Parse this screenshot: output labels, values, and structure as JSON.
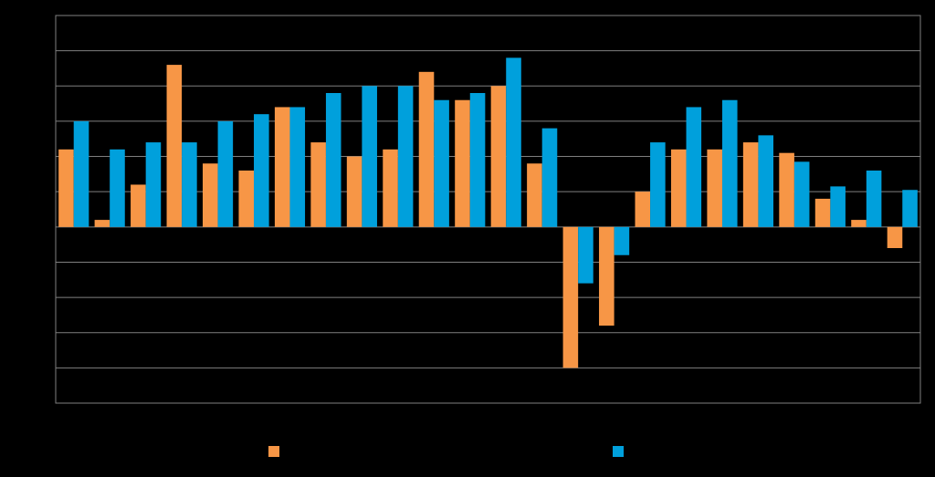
{
  "chart_data": {
    "type": "bar",
    "categories": [
      null,
      null,
      null,
      null,
      null,
      null,
      null,
      null,
      null,
      null,
      null,
      null,
      null,
      null,
      null,
      null,
      null,
      null,
      null,
      null,
      null,
      null,
      null,
      null
    ],
    "series": [
      {
        "color": "#f79646",
        "values": [
          2.2,
          0.2,
          1.2,
          4.6,
          1.8,
          1.6,
          3.4,
          2.4,
          2.0,
          2.2,
          4.4,
          3.6,
          4.0,
          1.8,
          -4.0,
          -2.8,
          1.0,
          2.2,
          2.2,
          2.4,
          2.1,
          0.8,
          0.2,
          -0.6
        ]
      },
      {
        "color": "#00a0dc",
        "values": [
          3.0,
          2.2,
          2.4,
          2.4,
          3.0,
          3.2,
          3.4,
          3.8,
          4.0,
          4.0,
          3.6,
          3.8,
          4.8,
          2.8,
          -1.6,
          -0.8,
          2.4,
          3.4,
          3.6,
          2.6,
          1.85,
          1.15,
          1.6,
          1.05
        ]
      }
    ],
    "ylim": [
      -5,
      6
    ],
    "yticks": [
      -5,
      -4,
      -3,
      -2,
      -1,
      0,
      1,
      2,
      3,
      4,
      5,
      6
    ],
    "grid": true
  }
}
